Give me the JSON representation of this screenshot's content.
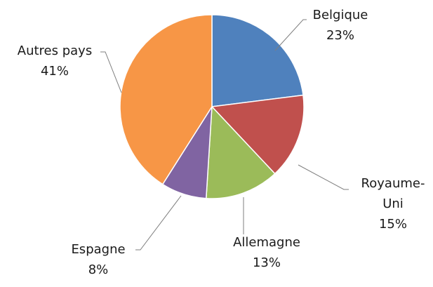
{
  "chart_data": {
    "type": "pie",
    "categories": [
      "Belgique",
      "Royaume-Uni",
      "Allemagne",
      "Espagne",
      "Autres pays"
    ],
    "values": [
      23,
      15,
      13,
      8,
      41
    ],
    "value_labels": [
      "23%",
      "15%",
      "13%",
      "8%",
      "41%"
    ],
    "colors": [
      "#4f81bd",
      "#c0504d",
      "#9bbb59",
      "#8064a2",
      "#f79646"
    ]
  }
}
